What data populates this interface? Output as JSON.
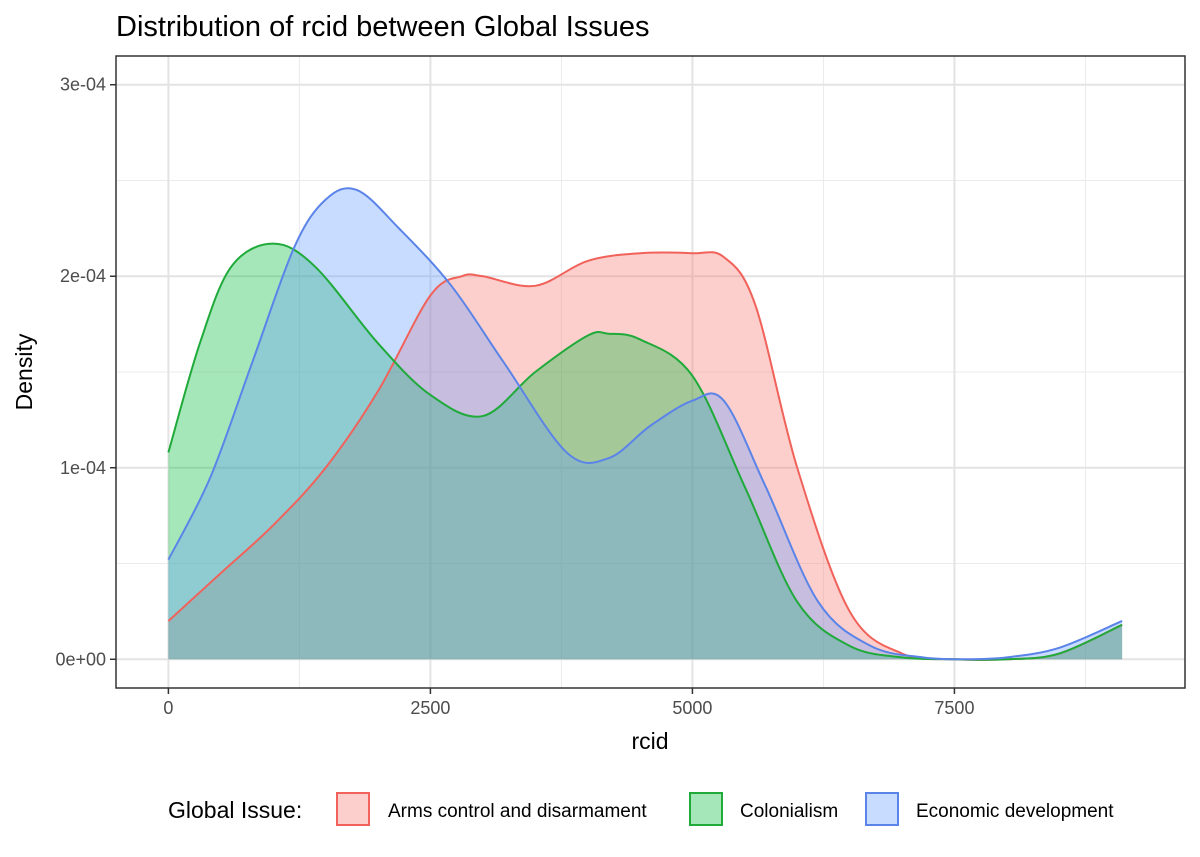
{
  "chart_data": {
    "type": "area",
    "title": "Distribution of rcid between Global Issues",
    "xlabel": "rcid",
    "ylabel": "Density",
    "xlim": [
      -500,
      9700
    ],
    "ylim": [
      -1.5e-05,
      0.000315
    ],
    "x_ticks": [
      0,
      2500,
      5000,
      7500
    ],
    "x_tick_labels": [
      "0",
      "2500",
      "5000",
      "7500"
    ],
    "y_ticks": [
      0,
      0.0001,
      0.0002,
      0.0003
    ],
    "y_tick_labels": [
      "0e+00",
      "1e-04",
      "2e-04",
      "3e-04"
    ],
    "grid": true,
    "legend": {
      "title": "Global Issue:",
      "position": "bottom"
    },
    "series": [
      {
        "name": "Arms control and disarmament",
        "line_color": "#F0625A",
        "fill_color": "#F8766D",
        "x": [
          0,
          500,
          1000,
          1500,
          2000,
          2500,
          2800,
          3000,
          3500,
          4000,
          4500,
          5000,
          5300,
          5600,
          6000,
          6500,
          7000,
          7500,
          8000,
          8500,
          9100
        ],
        "y": [
          2e-05,
          4.5e-05,
          7e-05,
          0.0001,
          0.00014,
          0.00019,
          0.0002,
          0.0002,
          0.000195,
          0.000208,
          0.000212,
          0.000212,
          0.00021,
          0.000185,
          0.0001,
          2.5e-05,
          3e-06,
          0.0,
          0.0,
          3e-06,
          1.8e-05
        ]
      },
      {
        "name": "Colonialism",
        "line_color": "#1FAA3A",
        "fill_color": "#00BA38",
        "x": [
          0,
          300,
          600,
          1000,
          1400,
          2000,
          2500,
          3000,
          3500,
          4000,
          4200,
          4500,
          5000,
          5500,
          6000,
          6500,
          7000,
          7500,
          8000,
          8500,
          9100
        ],
        "y": [
          0.000108,
          0.000165,
          0.000205,
          0.000217,
          0.000205,
          0.000165,
          0.000138,
          0.000127,
          0.00015,
          0.000169,
          0.00017,
          0.000167,
          0.000148,
          9e-05,
          3e-05,
          7e-06,
          1e-06,
          0.0,
          0.0,
          3e-06,
          1.8e-05
        ]
      },
      {
        "name": "Economic development",
        "line_color": "#5B84E8",
        "fill_color": "#619CFF",
        "x": [
          0,
          400,
          800,
          1200,
          1500,
          1800,
          2200,
          2700,
          3200,
          3800,
          4200,
          4600,
          5000,
          5300,
          5700,
          6200,
          6700,
          7200,
          7600,
          8000,
          8500,
          9100
        ],
        "y": [
          5.2e-05,
          9.5e-05,
          0.000155,
          0.000215,
          0.00024,
          0.000245,
          0.000225,
          0.000195,
          0.000155,
          0.000108,
          0.000105,
          0.000122,
          0.000135,
          0.000135,
          9e-05,
          3e-05,
          7e-06,
          1e-06,
          0.0,
          1e-06,
          6e-06,
          2e-05
        ]
      }
    ]
  }
}
